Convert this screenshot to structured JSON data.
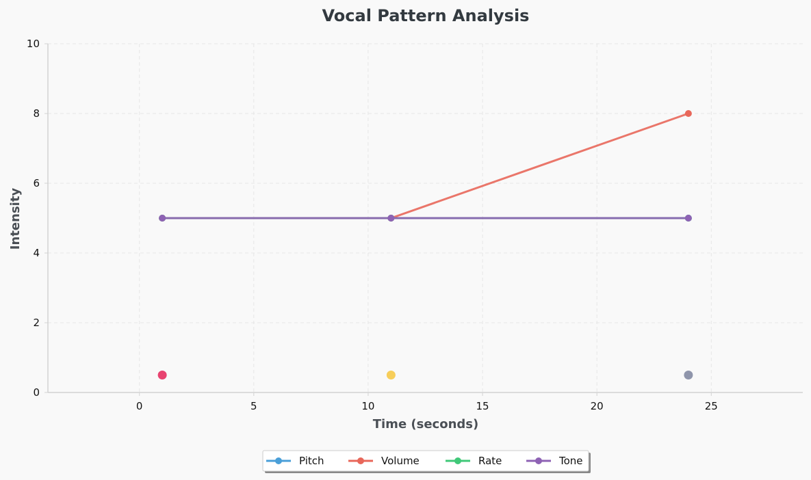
{
  "chart_data": {
    "type": "line",
    "title": "Vocal Pattern Analysis",
    "xlabel": "Time (seconds)",
    "ylabel": "Intensity",
    "xlim": [
      -4,
      29
    ],
    "ylim": [
      0,
      10
    ],
    "xticks": [
      0,
      5,
      10,
      15,
      20,
      25
    ],
    "yticks": [
      0,
      2,
      4,
      6,
      8,
      10
    ],
    "grid": true,
    "legend_position": "bottom-center",
    "x": [
      1,
      11,
      24
    ],
    "series": [
      {
        "name": "Pitch",
        "color": "#4a9fd8",
        "values": [
          5,
          5,
          5
        ]
      },
      {
        "name": "Volume",
        "color": "#e8675a",
        "values": [
          5,
          5,
          8
        ]
      },
      {
        "name": "Rate",
        "color": "#40c878",
        "values": [
          5,
          5,
          5
        ]
      },
      {
        "name": "Tone",
        "color": "#8e62b4",
        "values": [
          5,
          5,
          5
        ]
      }
    ],
    "markers": [
      {
        "x": 1,
        "y": 0.5,
        "color": "#e84370"
      },
      {
        "x": 11,
        "y": 0.5,
        "color": "#f7ce5a"
      },
      {
        "x": 24,
        "y": 0.5,
        "color": "#8f95ab"
      }
    ]
  }
}
